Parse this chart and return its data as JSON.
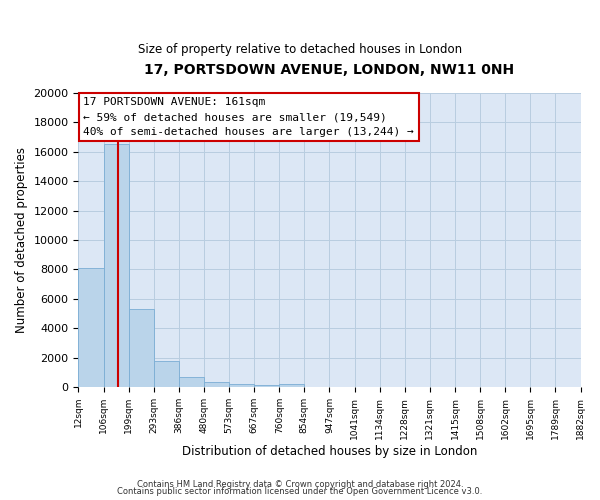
{
  "title": "17, PORTSDOWN AVENUE, LONDON, NW11 0NH",
  "subtitle": "Size of property relative to detached houses in London",
  "xlabel": "Distribution of detached houses by size in London",
  "ylabel": "Number of detached properties",
  "bar_color": "#bad4ea",
  "bar_edge_color": "#7aadd4",
  "background_color": "#ffffff",
  "plot_bg_color": "#dce7f5",
  "grid_color": "#b8cde0",
  "bin_labels": [
    "12sqm",
    "106sqm",
    "199sqm",
    "293sqm",
    "386sqm",
    "480sqm",
    "573sqm",
    "667sqm",
    "760sqm",
    "854sqm",
    "947sqm",
    "1041sqm",
    "1134sqm",
    "1228sqm",
    "1321sqm",
    "1415sqm",
    "1508sqm",
    "1602sqm",
    "1695sqm",
    "1789sqm",
    "1882sqm"
  ],
  "bar_values": [
    8100,
    16500,
    5300,
    1800,
    700,
    330,
    200,
    150,
    200,
    0,
    0,
    0,
    0,
    0,
    0,
    0,
    0,
    0,
    0,
    0
  ],
  "ylim": [
    0,
    20000
  ],
  "yticks": [
    0,
    2000,
    4000,
    6000,
    8000,
    10000,
    12000,
    14000,
    16000,
    18000,
    20000
  ],
  "property_line_color": "#cc0000",
  "annotation_title": "17 PORTSDOWN AVENUE: 161sqm",
  "annotation_line1": "← 59% of detached houses are smaller (19,549)",
  "annotation_line2": "40% of semi-detached houses are larger (13,244) →",
  "annotation_box_color": "#ffffff",
  "annotation_box_edge": "#cc0000",
  "footer_line1": "Contains HM Land Registry data © Crown copyright and database right 2024.",
  "footer_line2": "Contains public sector information licensed under the Open Government Licence v3.0."
}
